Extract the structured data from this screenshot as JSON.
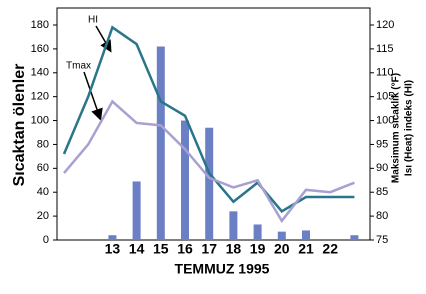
{
  "chart_data": {
    "type": "bar-line",
    "x_label": "TEMMUZ 1995",
    "y_label": "Sıcaktan ölenler",
    "y2_label": [
      "Maksimum sıcaklık (°F)",
      "Isı (Heat) indeks (HI)"
    ],
    "categories": [
      null,
      null,
      "13",
      "14",
      "15",
      "16",
      "17",
      "18",
      "19",
      "20",
      "21",
      "22",
      null
    ],
    "values": [
      0,
      0,
      4,
      49,
      162,
      100,
      94,
      24,
      13,
      7,
      8,
      0,
      4
    ],
    "color": "#6b7fc4",
    "series": [
      {
        "name": "HI",
        "color": "#2a7589",
        "axis": "y2",
        "values": [
          93,
          105,
          119.5,
          116,
          104,
          101,
          89,
          83,
          87,
          81,
          84,
          84,
          84
        ]
      },
      {
        "name": "Tmax",
        "color": "#a9a0d2",
        "axis": "y2",
        "values": [
          89,
          95,
          104,
          99.5,
          99,
          94,
          88,
          86,
          87.5,
          79,
          85.5,
          85,
          87
        ]
      }
    ],
    "ylim": [
      0,
      180
    ],
    "yticks": [
      0,
      20,
      40,
      60,
      80,
      100,
      120,
      140,
      160,
      180
    ],
    "y2lim": [
      75,
      120
    ],
    "y2ticks": [
      75,
      80,
      85,
      90,
      95,
      100,
      105,
      110,
      115,
      120
    ]
  }
}
